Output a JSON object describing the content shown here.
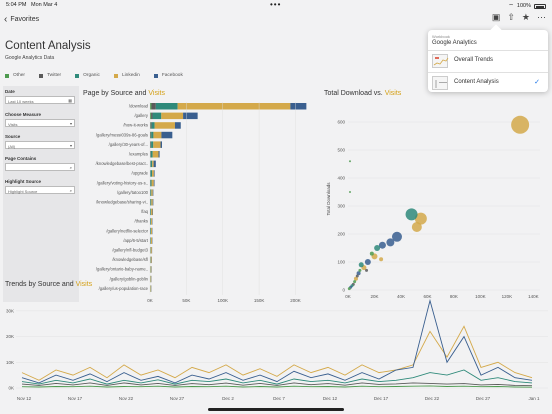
{
  "status": {
    "time": "5:04 PM",
    "date": "Mon Mar 4",
    "battery": "100%"
  },
  "nav": {
    "back_label": "Favorites"
  },
  "dashboard": {
    "title": "Content Analysis",
    "subtitle": "Google Analytics Data",
    "legend": [
      {
        "label": "Other",
        "color": "#4e9a4f"
      },
      {
        "label": "Twitter",
        "color": "#5a5a5a"
      },
      {
        "label": "Organic",
        "color": "#2f8a7a"
      },
      {
        "label": "Linkedin",
        "color": "#d4a94a"
      },
      {
        "label": "Facebook",
        "color": "#3a5f8f"
      }
    ]
  },
  "filters": {
    "date_label": "Date",
    "date_value": "Last 10 weeks",
    "measure_label": "Choose Measure",
    "measure_value": "Visits",
    "source_label": "Source",
    "source_value": "(All)",
    "page_contains_label": "Page Contains",
    "highlight_label": "Highlight Source",
    "highlight_placeholder": "Highlight Source"
  },
  "bar_panel": {
    "title_prefix": "Page by Source and ",
    "title_measure": "Visits"
  },
  "scatter_panel": {
    "title_prefix": "Total Download vs. ",
    "title_measure": "Visits",
    "ylabel": "Total Downloads"
  },
  "trend_panel": {
    "title_prefix": "Trends by Source and ",
    "title_measure": "Visits"
  },
  "popover": {
    "header": "Workbook",
    "title": "Google Analytics",
    "items": [
      {
        "label": "Overall Trends",
        "checked": false
      },
      {
        "label": "Content Analysis",
        "checked": true
      }
    ],
    "check_glyph": "✓"
  },
  "chart_data": [
    {
      "type": "bar",
      "title": "Page by Source and Visits",
      "stacked": true,
      "categories": [
        "/download",
        "/gallery",
        "/how-it-works",
        "/gallery/messi039s-86-goals",
        "/gallery/30-years-of...",
        "/examples",
        "/knowledgebase/best-pract..",
        "/upgrade",
        "/gallery/voting-history-us-s..",
        "/gallery/tatoo100",
        "/knowledgebase/sharing-vi..",
        "/faq",
        "/thanks",
        "/gallery/netflix-selector",
        "/app/6-5/start",
        "/gallery/nfl-budget3",
        "/knowledgebase/sfl",
        "/gallery/ontario-baby-name..",
        "/gallery/goblin-goblin",
        "/gallery/us-population-race"
      ],
      "series": [
        {
          "name": "Other",
          "values": [
            2000,
            1500,
            800,
            700,
            500,
            400,
            300,
            300,
            200,
            200,
            200,
            150,
            150,
            150,
            150,
            100,
            100,
            100,
            100,
            100
          ]
        },
        {
          "name": "Twitter",
          "values": [
            6000,
            2000,
            1500,
            1000,
            1000,
            800,
            700,
            500,
            500,
            400,
            400,
            300,
            300,
            300,
            300,
            200,
            200,
            200,
            200,
            200
          ]
        },
        {
          "name": "Organic",
          "values": [
            30000,
            12000,
            4000,
            3000,
            3000,
            2500,
            2000,
            2000,
            1500,
            1200,
            1200,
            1000,
            1000,
            900,
            800,
            700,
            700,
            600,
            500,
            500
          ]
        },
        {
          "name": "Linkedin",
          "values": [
            155000,
            30000,
            28000,
            11000,
            10000,
            8000,
            2000,
            2500,
            3000,
            2000,
            2000,
            2000,
            1500,
            1500,
            1500,
            1500,
            1200,
            1000,
            1000,
            900
          ]
        },
        {
          "name": "Facebook",
          "values": [
            22000,
            20000,
            8000,
            15000,
            2000,
            1500,
            3000,
            1000,
            1000,
            800,
            800,
            600,
            500,
            500,
            500,
            400,
            400,
            400,
            300,
            300
          ]
        }
      ],
      "xticks": [
        "0K",
        "50K",
        "100K",
        "150K",
        "200K"
      ],
      "xlim": [
        0,
        220000
      ]
    },
    {
      "type": "scatter",
      "title": "Total Download vs. Visits",
      "ylabel": "Total Downloads",
      "xticks": [
        "0K",
        "20K",
        "40K",
        "60K",
        "80K",
        "100K",
        "120K",
        "140K"
      ],
      "yticks": [
        "0",
        "100",
        "200",
        "300",
        "400",
        "500",
        "600"
      ],
      "xlim": [
        0,
        145000
      ],
      "ylim": [
        0,
        650
      ],
      "points": [
        {
          "x": 130000,
          "y": 590,
          "source": "Linkedin",
          "size": 9
        },
        {
          "x": 55000,
          "y": 255,
          "source": "Linkedin",
          "size": 6
        },
        {
          "x": 48000,
          "y": 270,
          "source": "Organic",
          "size": 6
        },
        {
          "x": 52000,
          "y": 225,
          "source": "Linkedin",
          "size": 5
        },
        {
          "x": 37000,
          "y": 190,
          "source": "Facebook",
          "size": 5
        },
        {
          "x": 32000,
          "y": 170,
          "source": "Facebook",
          "size": 4
        },
        {
          "x": 26000,
          "y": 160,
          "source": "Facebook",
          "size": 3.5
        },
        {
          "x": 22000,
          "y": 150,
          "source": "Organic",
          "size": 3
        },
        {
          "x": 20000,
          "y": 120,
          "source": "Linkedin",
          "size": 3
        },
        {
          "x": 15000,
          "y": 100,
          "source": "Facebook",
          "size": 3
        },
        {
          "x": 12000,
          "y": 80,
          "source": "Linkedin",
          "size": 2.5
        },
        {
          "x": 10000,
          "y": 90,
          "source": "Organic",
          "size": 2.5
        },
        {
          "x": 8000,
          "y": 60,
          "source": "Facebook",
          "size": 2
        },
        {
          "x": 6000,
          "y": 40,
          "source": "Linkedin",
          "size": 2
        },
        {
          "x": 5000,
          "y": 30,
          "source": "Other",
          "size": 1.5
        },
        {
          "x": 4000,
          "y": 20,
          "source": "Twitter",
          "size": 1.5
        },
        {
          "x": 3000,
          "y": 15,
          "source": "Organic",
          "size": 1.5
        },
        {
          "x": 2000,
          "y": 10,
          "source": "Facebook",
          "size": 1.5
        },
        {
          "x": 1000,
          "y": 5,
          "source": "Other",
          "size": 1.5
        },
        {
          "x": 7000,
          "y": 50,
          "source": "Twitter",
          "size": 1.5
        },
        {
          "x": 9000,
          "y": 70,
          "source": "Other",
          "size": 1.5
        },
        {
          "x": 25000,
          "y": 110,
          "source": "Linkedin",
          "size": 2
        },
        {
          "x": 18000,
          "y": 130,
          "source": "Other",
          "size": 2
        },
        {
          "x": 14000,
          "y": 70,
          "source": "Twitter",
          "size": 1.5
        },
        {
          "x": 1500,
          "y": 350,
          "source": "Other",
          "size": 1
        },
        {
          "x": 1500,
          "y": 460,
          "source": "Other",
          "size": 1
        }
      ]
    },
    {
      "type": "line",
      "title": "Trends by Source and Visits",
      "xticks": [
        "Nov 12",
        "Nov 17",
        "Nov 22",
        "Nov 27",
        "Dec 2",
        "Dec 7",
        "Dec 12",
        "Dec 17",
        "Dec 22",
        "Dec 27",
        "Jan 1"
      ],
      "yticks": [
        "0K",
        "10K",
        "20K",
        "30K"
      ],
      "ylim": [
        0,
        35000
      ],
      "series": [
        {
          "name": "Facebook",
          "values": [
            4000,
            2000,
            5000,
            3000,
            5500,
            2500,
            6000,
            3000,
            4500,
            2000,
            5000,
            3500,
            6000,
            3000,
            5000,
            2500,
            6500,
            4000,
            5500,
            3000,
            6000,
            3500,
            7000,
            8000,
            34000,
            10000,
            20000,
            5000,
            8000,
            4000,
            3000
          ]
        },
        {
          "name": "Linkedin",
          "values": [
            6000,
            3000,
            7000,
            5000,
            8000,
            4000,
            9000,
            5000,
            7000,
            4000,
            8000,
            6000,
            9000,
            5000,
            7500,
            4500,
            9000,
            6000,
            8000,
            5000,
            9000,
            6000,
            7000,
            9000,
            22000,
            12000,
            24000,
            8000,
            10000,
            6000,
            4000
          ]
        },
        {
          "name": "Organic",
          "values": [
            2500,
            1500,
            3000,
            2000,
            3500,
            1500,
            3000,
            2000,
            3200,
            1500,
            3000,
            2500,
            3500,
            2000,
            3000,
            1500,
            3500,
            2500,
            3000,
            2000,
            3500,
            2500,
            3000,
            4000,
            6000,
            5000,
            7000,
            3000,
            4000,
            2500,
            2000
          ]
        },
        {
          "name": "Twitter",
          "values": [
            1500,
            1000,
            1800,
            1200,
            2000,
            1000,
            2000,
            1200,
            1800,
            1000,
            1700,
            1300,
            1900,
            1100,
            1800,
            1000,
            2000,
            1300,
            1700,
            1100,
            2000,
            1400,
            1600,
            2000,
            1800,
            1500,
            1700,
            1200,
            1400,
            1000,
            900
          ]
        },
        {
          "name": "Other",
          "values": [
            500,
            400,
            600,
            500,
            700,
            400,
            600,
            500,
            700,
            400,
            600,
            500,
            700,
            400,
            600,
            400,
            700,
            500,
            600,
            400,
            700,
            500,
            600,
            700,
            800,
            600,
            700,
            500,
            600,
            400,
            300
          ]
        }
      ]
    }
  ]
}
